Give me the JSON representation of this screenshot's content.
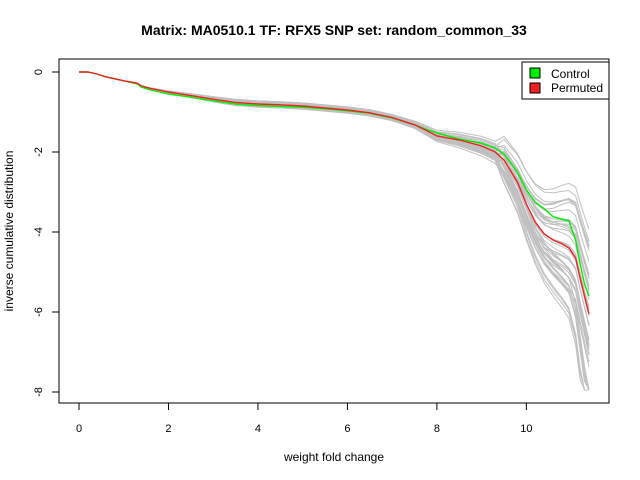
{
  "chart_data": {
    "type": "line",
    "title": "Matrix: MA0510.1 TF: RFX5 SNP set: random_common_33",
    "xlabel": "weight fold change",
    "ylabel": "inverse cumulative distribution",
    "xlim": [
      0,
      11.4
    ],
    "ylim": [
      -8,
      0
    ],
    "x_ticks": [
      "0",
      "2",
      "4",
      "6",
      "8",
      "10"
    ],
    "y_ticks": [
      "0",
      "-2",
      "-4",
      "-6",
      "-8"
    ],
    "grid": false,
    "legend_position": "top-right",
    "series": [
      {
        "name": "Control",
        "color": "#00ee00",
        "x": [
          0,
          0.2,
          0.4,
          0.6,
          0.8,
          1.0,
          1.3,
          1.4,
          1.6,
          2.0,
          2.5,
          3.0,
          3.5,
          4.0,
          4.5,
          5.0,
          5.5,
          6.0,
          6.5,
          7.0,
          7.5,
          7.8,
          8.0,
          8.5,
          9.0,
          9.3,
          9.5,
          9.8,
          10.0,
          10.2,
          10.4,
          10.6,
          10.8,
          10.95,
          11.1,
          11.2,
          11.3,
          11.4
        ],
        "y": [
          0,
          0,
          -0.05,
          -0.12,
          -0.17,
          -0.22,
          -0.3,
          -0.38,
          -0.45,
          -0.55,
          -0.63,
          -0.72,
          -0.8,
          -0.84,
          -0.86,
          -0.88,
          -0.92,
          -0.97,
          -1.03,
          -1.15,
          -1.32,
          -1.45,
          -1.52,
          -1.68,
          -1.78,
          -1.9,
          -2.05,
          -2.5,
          -2.95,
          -3.25,
          -3.42,
          -3.62,
          -3.68,
          -3.72,
          -4.2,
          -4.8,
          -5.3,
          -5.6
        ]
      },
      {
        "name": "Permuted",
        "color": "#ee2222",
        "x": [
          0,
          0.2,
          0.4,
          0.6,
          0.8,
          1.0,
          1.3,
          1.4,
          1.6,
          2.0,
          2.5,
          3.0,
          3.5,
          4.0,
          4.5,
          5.0,
          5.5,
          6.0,
          6.5,
          7.0,
          7.5,
          7.8,
          8.0,
          8.5,
          9.0,
          9.3,
          9.5,
          9.8,
          10.0,
          10.2,
          10.4,
          10.6,
          10.8,
          10.95,
          11.1,
          11.2,
          11.3,
          11.4
        ],
        "y": [
          0,
          0,
          -0.05,
          -0.12,
          -0.17,
          -0.22,
          -0.28,
          -0.35,
          -0.41,
          -0.5,
          -0.59,
          -0.68,
          -0.76,
          -0.8,
          -0.82,
          -0.85,
          -0.9,
          -0.95,
          -1.02,
          -1.14,
          -1.32,
          -1.48,
          -1.6,
          -1.7,
          -1.85,
          -2.0,
          -2.2,
          -2.75,
          -3.3,
          -3.75,
          -4.05,
          -4.2,
          -4.3,
          -4.4,
          -4.65,
          -5.15,
          -5.6,
          -6.05
        ]
      }
    ]
  }
}
